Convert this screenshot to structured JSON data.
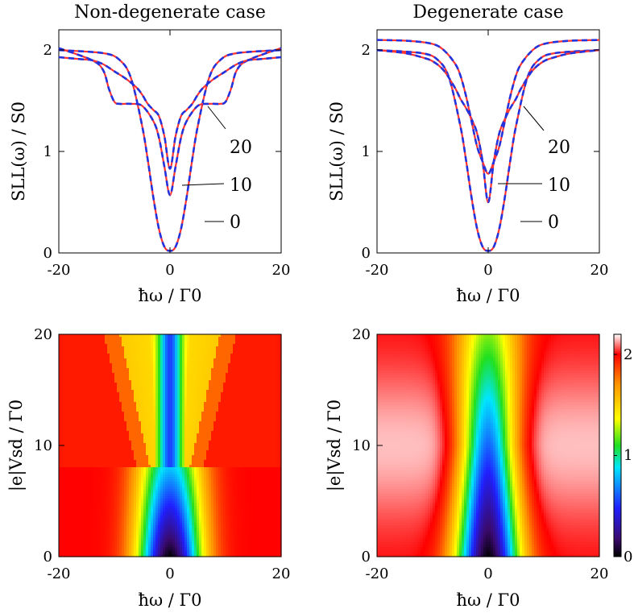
{
  "chart_data": [
    {
      "type": "line",
      "title": "Non-degenerate case",
      "xlabel": "ħω / Γ0",
      "ylabel": "SLL(ω) / S0",
      "xlim": [
        -20,
        20
      ],
      "ylim": [
        0,
        2.2
      ],
      "x_ticks": [
        "-20",
        "0",
        "20"
      ],
      "y_ticks": [
        "0",
        "1",
        "2"
      ],
      "style": "red solid line overlaid with blue dashed line",
      "series": [
        {
          "name": "0",
          "x": [
            -20,
            -12,
            -9,
            -7,
            -5,
            -4,
            -3,
            -2,
            -1,
            0,
            1,
            2,
            3,
            4,
            5,
            7,
            9,
            12,
            20
          ],
          "values": [
            2.0,
            1.97,
            1.9,
            1.72,
            1.25,
            0.92,
            0.55,
            0.24,
            0.06,
            0.02,
            0.06,
            0.24,
            0.55,
            0.92,
            1.25,
            1.72,
            1.9,
            1.97,
            2.0
          ]
        },
        {
          "name": "10",
          "x": [
            -20,
            -14,
            -12,
            -11,
            -10,
            -9,
            -7,
            -5,
            -3,
            -2,
            -1,
            0,
            1,
            2,
            3,
            5,
            7,
            9,
            10,
            11,
            12,
            14,
            20
          ],
          "values": [
            2.02,
            1.9,
            1.8,
            1.62,
            1.49,
            1.47,
            1.47,
            1.45,
            1.3,
            1.14,
            0.85,
            0.57,
            0.85,
            1.14,
            1.3,
            1.45,
            1.47,
            1.47,
            1.49,
            1.62,
            1.8,
            1.9,
            2.02
          ]
        },
        {
          "name": "20",
          "x": [
            -20,
            -16,
            -14,
            -12,
            -10,
            -8,
            -6,
            -5,
            -4,
            -3,
            -2,
            -1,
            0,
            1,
            2,
            3,
            4,
            5,
            6,
            8,
            10,
            12,
            14,
            16,
            20
          ],
          "values": [
            1.93,
            1.91,
            1.9,
            1.86,
            1.79,
            1.72,
            1.63,
            1.56,
            1.47,
            1.41,
            1.35,
            1.15,
            0.83,
            1.15,
            1.35,
            1.41,
            1.47,
            1.56,
            1.63,
            1.72,
            1.79,
            1.86,
            1.9,
            1.91,
            1.93
          ]
        }
      ],
      "annotations": [
        "20",
        "10",
        "0"
      ]
    },
    {
      "type": "line",
      "title": "Degenerate case",
      "xlabel": "ħω / Γ0",
      "ylabel": "SLL(ω) / S0",
      "xlim": [
        -20,
        20
      ],
      "ylim": [
        0,
        2.2
      ],
      "x_ticks": [
        "-20",
        "0",
        "20"
      ],
      "y_ticks": [
        "0",
        "1",
        "2"
      ],
      "style": "red solid line overlaid with blue dashed line",
      "series": [
        {
          "name": "0",
          "x": [
            -20,
            -12,
            -9,
            -7,
            -5,
            -4,
            -3,
            -2,
            -1,
            0,
            1,
            2,
            3,
            4,
            5,
            7,
            9,
            12,
            20
          ],
          "values": [
            2.0,
            1.97,
            1.9,
            1.72,
            1.25,
            0.92,
            0.55,
            0.24,
            0.06,
            0.02,
            0.06,
            0.24,
            0.55,
            0.92,
            1.25,
            1.72,
            1.9,
            1.97,
            2.0
          ]
        },
        {
          "name": "10",
          "x": [
            -20,
            -15,
            -12,
            -10,
            -8,
            -6,
            -5,
            -4,
            -3,
            -2,
            -1,
            0,
            1,
            2,
            3,
            4,
            5,
            6,
            8,
            10,
            12,
            15,
            20
          ],
          "values": [
            2.0,
            1.97,
            1.93,
            1.89,
            1.8,
            1.63,
            1.52,
            1.43,
            1.32,
            1.18,
            0.9,
            0.5,
            0.9,
            1.18,
            1.32,
            1.43,
            1.52,
            1.63,
            1.8,
            1.89,
            1.93,
            1.97,
            2.0
          ]
        },
        {
          "name": "20",
          "x": [
            -20,
            -14,
            -10,
            -8,
            -6,
            -5,
            -4,
            -3,
            -2,
            -1,
            0,
            1,
            2,
            3,
            4,
            5,
            6,
            8,
            10,
            14,
            20
          ],
          "values": [
            2.1,
            2.09,
            2.06,
            2.0,
            1.87,
            1.75,
            1.55,
            1.3,
            1.05,
            0.9,
            0.78,
            0.9,
            1.05,
            1.3,
            1.55,
            1.75,
            1.87,
            2.0,
            2.06,
            2.09,
            2.1
          ]
        }
      ],
      "annotations": [
        "20",
        "10",
        "0"
      ]
    },
    {
      "type": "heatmap",
      "title": "",
      "xlabel": "ħω / Γ0",
      "ylabel": "|e|Vsd / Γ0",
      "xlim": [
        -20,
        20
      ],
      "ylim": [
        0,
        20
      ],
      "x_ticks": [
        "-20",
        "0",
        "20"
      ],
      "y_ticks": [
        "0",
        "10",
        "20"
      ],
      "value": "SLL(ω) / S0",
      "colorbar_range": [
        0,
        2.2
      ]
    },
    {
      "type": "heatmap",
      "title": "",
      "xlabel": "ħω / Γ0",
      "ylabel": "|e|Vsd / Γ0",
      "xlim": [
        -20,
        20
      ],
      "ylim": [
        0,
        20
      ],
      "x_ticks": [
        "-20",
        "0",
        "20"
      ],
      "y_ticks": [
        "0",
        "10",
        "20"
      ],
      "value": "SLL(ω) / S0",
      "colorbar_range": [
        0,
        2.2
      ],
      "colorbar_ticks": [
        "0",
        "1",
        "2"
      ]
    }
  ]
}
